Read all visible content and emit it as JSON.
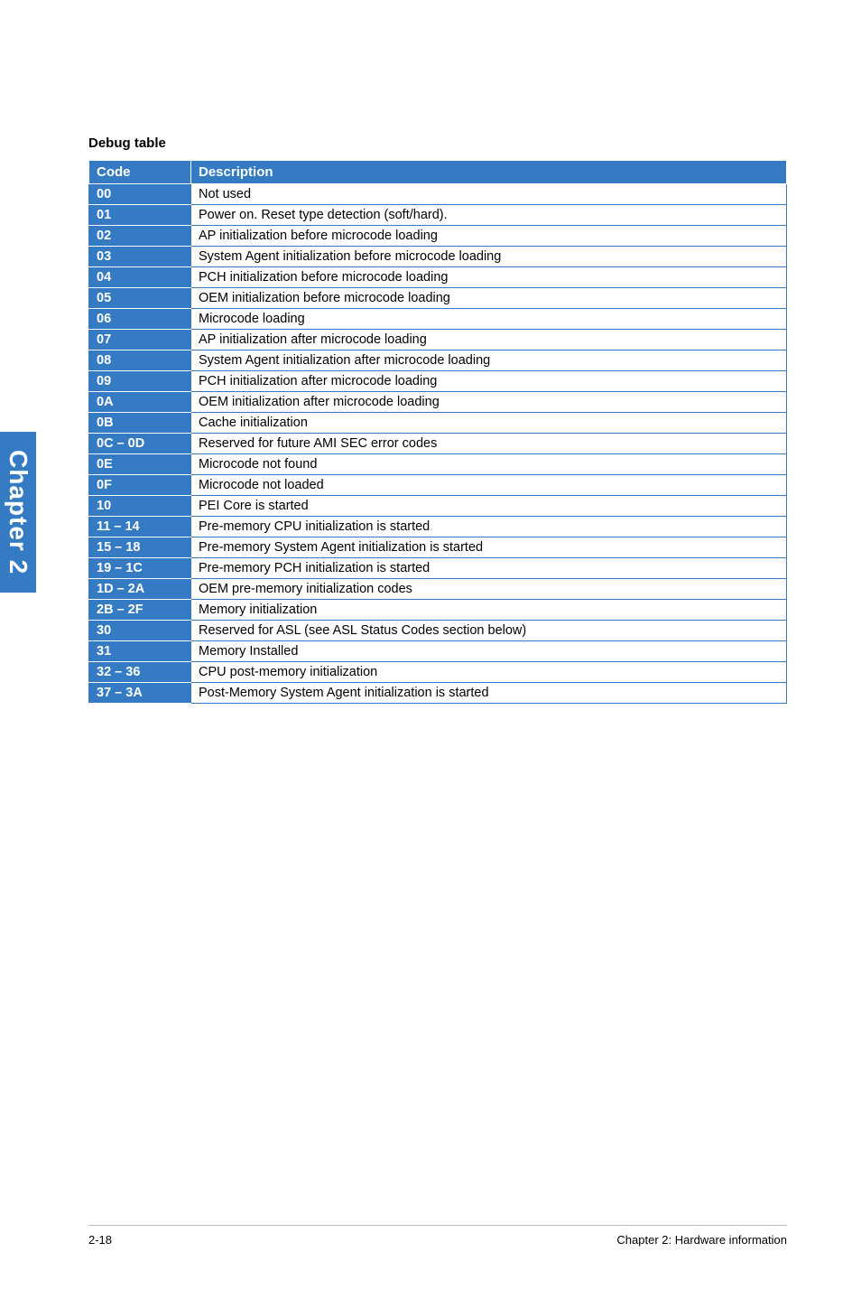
{
  "title": "Debug table",
  "sideTab": "Chapter 2",
  "columns": [
    "Code",
    "Description"
  ],
  "rows": [
    {
      "code": "00",
      "desc": "Not used"
    },
    {
      "code": "01",
      "desc": "Power on. Reset type detection (soft/hard)."
    },
    {
      "code": "02",
      "desc": "AP initialization before microcode loading"
    },
    {
      "code": "03",
      "desc": "System Agent initialization before microcode loading"
    },
    {
      "code": "04",
      "desc": "PCH initialization before microcode loading"
    },
    {
      "code": "05",
      "desc": "OEM initialization before microcode loading"
    },
    {
      "code": "06",
      "desc": "Microcode loading"
    },
    {
      "code": "07",
      "desc": "AP initialization after microcode loading"
    },
    {
      "code": "08",
      "desc": "System Agent initialization after microcode loading"
    },
    {
      "code": "09",
      "desc": "PCH initialization after microcode loading"
    },
    {
      "code": "0A",
      "desc": "OEM initialization after microcode loading"
    },
    {
      "code": "0B",
      "desc": "Cache initialization"
    },
    {
      "code": "0C – 0D",
      "desc": "Reserved for future AMI SEC error codes"
    },
    {
      "code": "0E",
      "desc": "Microcode not found"
    },
    {
      "code": "0F",
      "desc": "Microcode not loaded"
    },
    {
      "code": "10",
      "desc": "PEI Core is started"
    },
    {
      "code": "11 – 14",
      "desc": "Pre-memory CPU initialization is started"
    },
    {
      "code": "15 – 18",
      "desc": "Pre-memory System Agent initialization is started"
    },
    {
      "code": "19 – 1C",
      "desc": "Pre-memory PCH initialization is started"
    },
    {
      "code": "1D – 2A",
      "desc": "OEM pre-memory initialization codes"
    },
    {
      "code": "2B – 2F",
      "desc": "Memory initialization"
    },
    {
      "code": "30",
      "desc": "Reserved for ASL (see ASL Status Codes section below)"
    },
    {
      "code": "31",
      "desc": "Memory Installed"
    },
    {
      "code": "32 – 36",
      "desc": "CPU post-memory initialization"
    },
    {
      "code": "37 – 3A",
      "desc": "Post-Memory System Agent initialization is started"
    }
  ],
  "footer": {
    "pageNum": "2-18",
    "chapter": "Chapter 2: Hardware information"
  },
  "colors": {
    "tableBlue": "#357bc4",
    "white": "#ffffff",
    "black": "#000000",
    "lineGray": "#bfbfbf"
  }
}
